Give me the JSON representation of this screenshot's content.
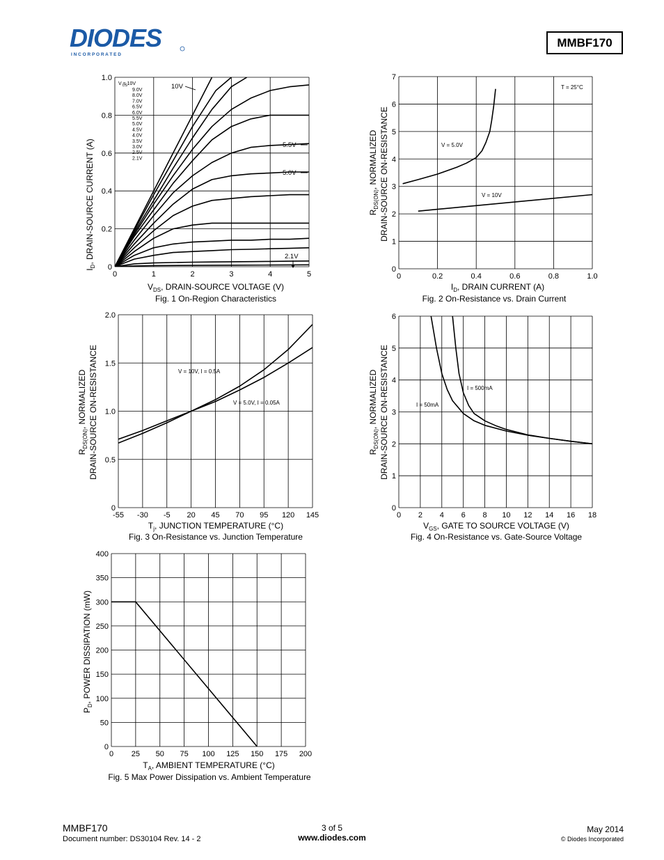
{
  "header": {
    "logo_text": "DIODES",
    "logo_subtext": "I N C O R P O R A T E D",
    "part_number": "MMBF170"
  },
  "figures": [
    {
      "caption": "Fig. 1  On-Region Characteristics",
      "xlabel_main": "V",
      "xlabel_sub": "DS",
      "xlabel_rest": ", DRAIN-SOURCE VOLTAGE (V)",
      "ylabel_main": "I",
      "ylabel_sub": "D",
      "ylabel_rest": ", DRAIN-SOURCE CURRENT (A)",
      "legend_title": "V  = 10V",
      "legend_title_sub": "DS",
      "legend_items": [
        "9.0V",
        "8.0V",
        "7.0V",
        "6.5V",
        "6.0V",
        "5.5V",
        "5.0V",
        "4.5V",
        "4.0V",
        "3.5V",
        "3.0V",
        "2.5V",
        "2.1V"
      ],
      "annotations": [
        "10V",
        "5.5V",
        "5.0V",
        "2.1V"
      ]
    },
    {
      "caption": "Fig. 2  On-Resistance vs. Drain Current",
      "xlabel_main": "I",
      "xlabel_sub": "D",
      "xlabel_rest": ", DRAIN CURRENT (A)",
      "ylabel_line1_main": "R",
      "ylabel_line1_sub": "DS(ON)",
      "ylabel_line1_rest": ", NORMALIZED",
      "ylabel_line2": "DRAIN-SOURCE ON-RESISTANCE",
      "annotations": [
        "T  = 25°C",
        "V   = 5.0V",
        "V   = 10V"
      ]
    },
    {
      "caption": "Fig. 3  On-Resistance vs. Junction Temperature",
      "xlabel_main": "T",
      "xlabel_sub": "j",
      "xlabel_rest": ", JUNCTION TEMPERATURE (°C)",
      "ylabel_line1_main": "R",
      "ylabel_line1_sub": "DS(ON)",
      "ylabel_line1_rest": ", NORMALIZED",
      "ylabel_line2": "DRAIN-SOURCE ON-RESISTANCE",
      "annotations": [
        "V   = 10V, I  = 0.5A",
        "V   = 5.0V, I  = 0.05A"
      ]
    },
    {
      "caption": "Fig. 4  On-Resistance vs. Gate-Source Voltage",
      "xlabel_main": "V",
      "xlabel_sub": "GS",
      "xlabel_rest": ", GATE TO SOURCE VOLTAGE (V)",
      "ylabel_line1_main": "R",
      "ylabel_line1_sub": "DS(ON)",
      "ylabel_line1_rest": ", NORMALIZED",
      "ylabel_line2": "DRAIN-SOURCE ON-RESISTANCE",
      "annotations": [
        "I  = 500mA",
        "I  = 50mA"
      ]
    },
    {
      "caption": "Fig. 5 Max Power Dissipation vs. Ambient Temperature",
      "xlabel_main": "T",
      "xlabel_sub": "A",
      "xlabel_rest": ", AMBIENT TEMPERATURE (°C)",
      "ylabel_main": "P",
      "ylabel_sub": "D",
      "ylabel_rest": ", POWER DISSIPATION (mW)"
    }
  ],
  "chart_data": [
    {
      "type": "line",
      "title": "Fig. 1  On-Region Characteristics",
      "xlim": [
        0,
        5
      ],
      "ylim": [
        0,
        1.0
      ],
      "xticks": [
        "0",
        "1",
        "2",
        "3",
        "4",
        "5"
      ],
      "yticks": [
        "0",
        "0.2",
        "0.4",
        "0.6",
        "0.8",
        "1.0"
      ],
      "grid": true,
      "series": [
        {
          "name": "10V",
          "x": [
            0,
            0.5,
            1,
            1.5,
            2,
            2.5
          ],
          "y": [
            0,
            0.2,
            0.4,
            0.6,
            0.8,
            1.0
          ]
        },
        {
          "name": "9.0V",
          "x": [
            0,
            0.5,
            1,
            1.5,
            2,
            2.6,
            3
          ],
          "y": [
            0,
            0.19,
            0.38,
            0.56,
            0.74,
            0.93,
            1.0
          ]
        },
        {
          "name": "8.0V",
          "x": [
            0,
            0.5,
            1,
            1.5,
            2,
            2.5,
            3,
            3.4
          ],
          "y": [
            0,
            0.18,
            0.35,
            0.52,
            0.68,
            0.83,
            0.95,
            1.0
          ]
        },
        {
          "name": "7.0V",
          "x": [
            0,
            0.5,
            1,
            1.5,
            2,
            2.5,
            3,
            3.5,
            4,
            4.5,
            5
          ],
          "y": [
            0,
            0.17,
            0.33,
            0.48,
            0.62,
            0.74,
            0.83,
            0.89,
            0.93,
            0.95,
            0.96
          ]
        },
        {
          "name": "6.5V",
          "x": [
            0,
            0.5,
            1,
            1.5,
            2,
            2.5,
            3,
            3.5,
            4,
            4.5,
            5
          ],
          "y": [
            0,
            0.16,
            0.3,
            0.44,
            0.56,
            0.67,
            0.74,
            0.78,
            0.8,
            0.8,
            0.8
          ]
        },
        {
          "name": "5.5V",
          "x": [
            0,
            0.5,
            1,
            1.5,
            2,
            2.5,
            3,
            3.5,
            4,
            4.5,
            5
          ],
          "y": [
            0,
            0.14,
            0.27,
            0.39,
            0.48,
            0.55,
            0.6,
            0.63,
            0.64,
            0.645,
            0.65
          ]
        },
        {
          "name": "5.0V",
          "x": [
            0,
            0.5,
            1,
            1.5,
            2,
            2.5,
            3,
            3.5,
            4,
            4.5,
            5
          ],
          "y": [
            0,
            0.12,
            0.23,
            0.33,
            0.41,
            0.46,
            0.48,
            0.49,
            0.495,
            0.5,
            0.5
          ]
        },
        {
          "name": "4.5V",
          "x": [
            0,
            0.5,
            1,
            1.5,
            2,
            2.5,
            3,
            3.5,
            4,
            4.5,
            5
          ],
          "y": [
            0,
            0.1,
            0.19,
            0.27,
            0.32,
            0.35,
            0.36,
            0.37,
            0.375,
            0.38,
            0.38
          ]
        },
        {
          "name": "4.0V",
          "x": [
            0,
            0.5,
            1,
            1.5,
            2,
            2.5,
            3,
            3.5,
            4,
            4.5,
            5
          ],
          "y": [
            0,
            0.08,
            0.15,
            0.2,
            0.22,
            0.23,
            0.23,
            0.23,
            0.23,
            0.23,
            0.23
          ]
        },
        {
          "name": "3.5V",
          "x": [
            0,
            0.5,
            1,
            1.5,
            2,
            2.5,
            3,
            3.5,
            4,
            4.5,
            5
          ],
          "y": [
            0,
            0.06,
            0.1,
            0.12,
            0.13,
            0.135,
            0.14,
            0.14,
            0.145,
            0.145,
            0.15
          ]
        },
        {
          "name": "3.0V",
          "x": [
            0,
            0.5,
            1,
            1.5,
            2,
            2.5,
            3,
            3.5,
            4,
            4.5,
            5
          ],
          "y": [
            0,
            0.04,
            0.06,
            0.075,
            0.08,
            0.085,
            0.09,
            0.092,
            0.095,
            0.097,
            0.1
          ]
        },
        {
          "name": "2.5V",
          "x": [
            0,
            0.5,
            1,
            1.5,
            2,
            2.5,
            3,
            3.5,
            4,
            4.5,
            5
          ],
          "y": [
            0,
            0.015,
            0.02,
            0.022,
            0.024,
            0.025,
            0.026,
            0.027,
            0.028,
            0.029,
            0.03
          ]
        },
        {
          "name": "2.1V",
          "x": [
            0,
            0.5,
            1,
            2,
            3,
            4,
            5
          ],
          "y": [
            0,
            0.004,
            0.006,
            0.007,
            0.008,
            0.009,
            0.01
          ]
        }
      ]
    },
    {
      "type": "line",
      "title": "Fig. 2  On-Resistance vs. Drain Current",
      "xlim": [
        0,
        1.0
      ],
      "ylim": [
        0,
        7
      ],
      "xticks": [
        "0",
        "0.2",
        "0.4",
        "0.6",
        "0.8",
        "1.0"
      ],
      "yticks": [
        "0",
        "1",
        "2",
        "3",
        "4",
        "5",
        "6",
        "7"
      ],
      "grid": true,
      "series": [
        {
          "name": "V_GS = 5.0V",
          "x": [
            0.02,
            0.1,
            0.2,
            0.3,
            0.35,
            0.4,
            0.43,
            0.45,
            0.47,
            0.48,
            0.49,
            0.5
          ],
          "y": [
            3.1,
            3.25,
            3.45,
            3.7,
            3.85,
            4.05,
            4.3,
            4.6,
            5.0,
            5.4,
            5.9,
            6.55
          ]
        },
        {
          "name": "V_GS = 10V",
          "x": [
            0.1,
            1.0
          ],
          "y": [
            2.1,
            2.7
          ]
        }
      ]
    },
    {
      "type": "line",
      "title": "Fig. 3  On-Resistance vs. Junction Temperature",
      "xlim": [
        -55,
        145
      ],
      "ylim": [
        0,
        2.0
      ],
      "xticks": [
        "-55",
        "-30",
        "-5",
        "20",
        "45",
        "70",
        "95",
        "120",
        "145"
      ],
      "yticks": [
        "0",
        "0.5",
        "1.0",
        "1.5",
        "2.0"
      ],
      "grid": true,
      "series": [
        {
          "name": "V_GS = 10V, I_D = 0.5A",
          "x": [
            -55,
            -30,
            -5,
            20,
            45,
            70,
            95,
            120,
            145
          ],
          "y": [
            0.67,
            0.77,
            0.88,
            1.0,
            1.12,
            1.26,
            1.43,
            1.64,
            1.9
          ]
        },
        {
          "name": "V_GS = 5.0V, I_D = 0.05A",
          "x": [
            -55,
            -30,
            -5,
            20,
            45,
            70,
            95,
            120,
            145
          ],
          "y": [
            0.71,
            0.8,
            0.9,
            1.0,
            1.1,
            1.22,
            1.35,
            1.5,
            1.66
          ]
        }
      ]
    },
    {
      "type": "line",
      "title": "Fig. 4  On-Resistance vs. Gate-Source Voltage",
      "xlim": [
        0,
        18
      ],
      "ylim": [
        0,
        6
      ],
      "xticks": [
        "0",
        "2",
        "4",
        "6",
        "8",
        "10",
        "12",
        "14",
        "16",
        "18"
      ],
      "yticks": [
        "0",
        "1",
        "2",
        "3",
        "4",
        "5",
        "6"
      ],
      "grid": true,
      "series": [
        {
          "name": "I_D = 50mA",
          "x": [
            3,
            3.5,
            4,
            4.5,
            5,
            6,
            7,
            8,
            10,
            12,
            14,
            16,
            18
          ],
          "y": [
            6.0,
            5.0,
            4.2,
            3.7,
            3.35,
            2.95,
            2.72,
            2.58,
            2.4,
            2.27,
            2.17,
            2.08,
            2.0
          ]
        },
        {
          "name": "I_D = 500mA",
          "x": [
            5,
            5.3,
            5.6,
            6,
            6.5,
            7,
            8,
            9,
            10,
            12,
            14,
            16,
            18
          ],
          "y": [
            6.0,
            5.0,
            4.2,
            3.6,
            3.2,
            2.95,
            2.72,
            2.57,
            2.45,
            2.28,
            2.17,
            2.08,
            2.0
          ]
        }
      ]
    },
    {
      "type": "line",
      "title": "Fig. 5 Max Power Dissipation vs. Ambient Temperature",
      "xlim": [
        0,
        200
      ],
      "ylim": [
        0,
        400
      ],
      "xticks": [
        "0",
        "25",
        "50",
        "75",
        "100",
        "125",
        "150",
        "175",
        "200"
      ],
      "yticks": [
        "0",
        "50",
        "100",
        "150",
        "200",
        "250",
        "300",
        "350",
        "400"
      ],
      "grid": true,
      "series": [
        {
          "name": "",
          "x": [
            0,
            25,
            150
          ],
          "y": [
            300,
            300,
            0
          ]
        }
      ]
    }
  ],
  "footer": {
    "part": "MMBF170",
    "doc_number": "Document number: DS30104 Rev. 14 - 2",
    "page": "3 of 5",
    "url": "www.diodes.com",
    "date": "May 2014",
    "copyright": "© Diodes Incorporated"
  }
}
